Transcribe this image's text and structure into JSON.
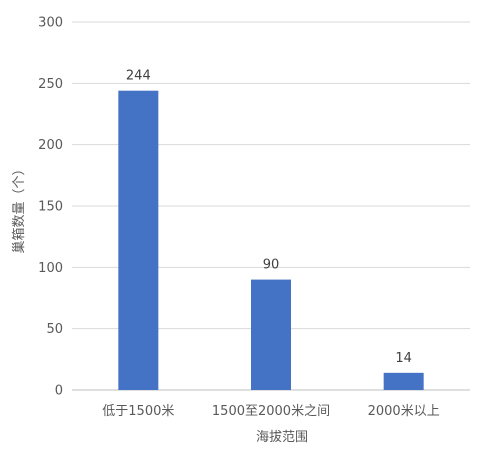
{
  "chart_data": {
    "type": "bar",
    "title": "",
    "xlabel": "海拔范围",
    "ylabel": "巢箱数量（个）",
    "categories": [
      "低于1500米",
      "1500至2000米之间",
      "2000米以上"
    ],
    "values": [
      244,
      90,
      14
    ],
    "data_labels": [
      "244",
      "90",
      "14"
    ],
    "ylim": [
      0,
      300
    ],
    "yticks": [
      0,
      50,
      100,
      150,
      200,
      250,
      300
    ],
    "ytick_labels": [
      "0",
      "50",
      "100",
      "150",
      "200",
      "250",
      "300"
    ],
    "grid": true,
    "legend": "none",
    "colors": {
      "bar": "#4472C4",
      "grid": "#D9D9D9",
      "axis": "#BFBFBF"
    }
  }
}
